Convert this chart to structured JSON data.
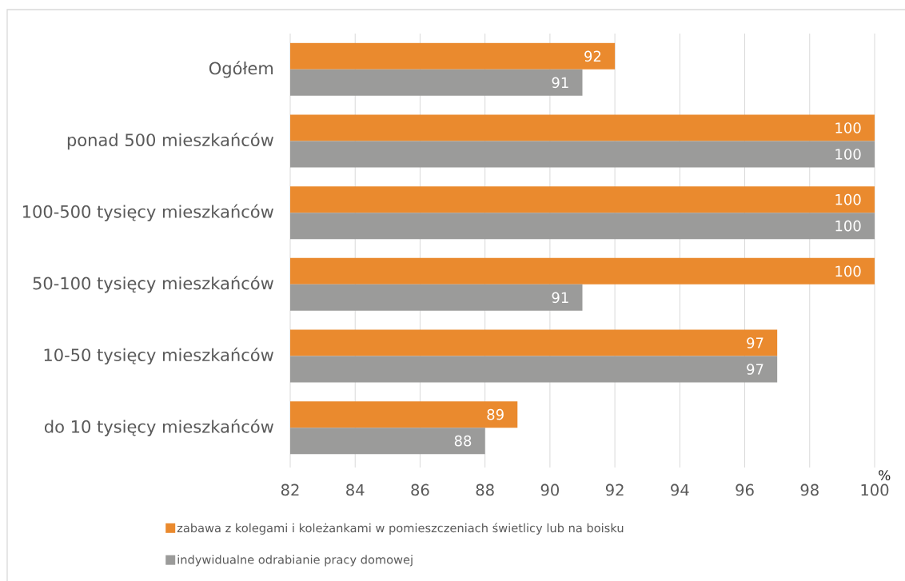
{
  "chart_data": {
    "type": "bar",
    "orientation": "horizontal",
    "categories": [
      "Ogółem",
      "ponad 500  mieszkańców",
      "100-500 tysięcy mieszkańców",
      "50-100 tysięcy mieszkańców",
      "10-50 tysięcy mieszkańców",
      "do 10 tysięcy mieszkańców"
    ],
    "series": [
      {
        "name": "zabawa z kolegami i koleżankami w pomieszczeniach świetlicy lub na boisku",
        "color": "#ea8a2e",
        "values": [
          92,
          100,
          100,
          100,
          97,
          89
        ]
      },
      {
        "name": "indywidualne odrabianie pracy domowej",
        "color": "#9b9b9a",
        "values": [
          91,
          100,
          100,
          91,
          97,
          88
        ]
      }
    ],
    "xlabel": "%",
    "xlim": [
      82,
      100
    ],
    "xticks": [
      82,
      84,
      86,
      88,
      90,
      92,
      94,
      96,
      98,
      100
    ],
    "grid": "x",
    "legend": "bottom",
    "data_labels": true
  }
}
